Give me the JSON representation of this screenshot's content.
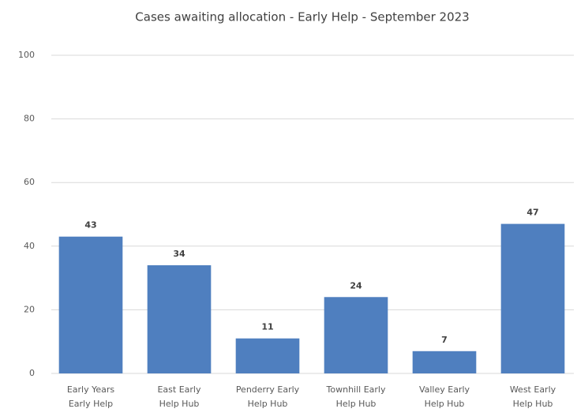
{
  "chart_data": {
    "type": "bar",
    "title": "Cases awaiting allocation - Early Help - September 2023",
    "categories": [
      "Early Years\nEarly Help",
      "East Early\nHelp Hub",
      "Penderry Early\nHelp Hub",
      "Townhill Early\nHelp Hub",
      "Valley Early\nHelp Hub",
      "West Early\nHelp Hub"
    ],
    "values": [
      43,
      34,
      11,
      24,
      7,
      47
    ],
    "color": "#4f7fbf",
    "ylim": [
      0,
      100
    ],
    "yticks": [
      0,
      20,
      40,
      60,
      80,
      100
    ],
    "grid": true,
    "data_labels": true
  }
}
